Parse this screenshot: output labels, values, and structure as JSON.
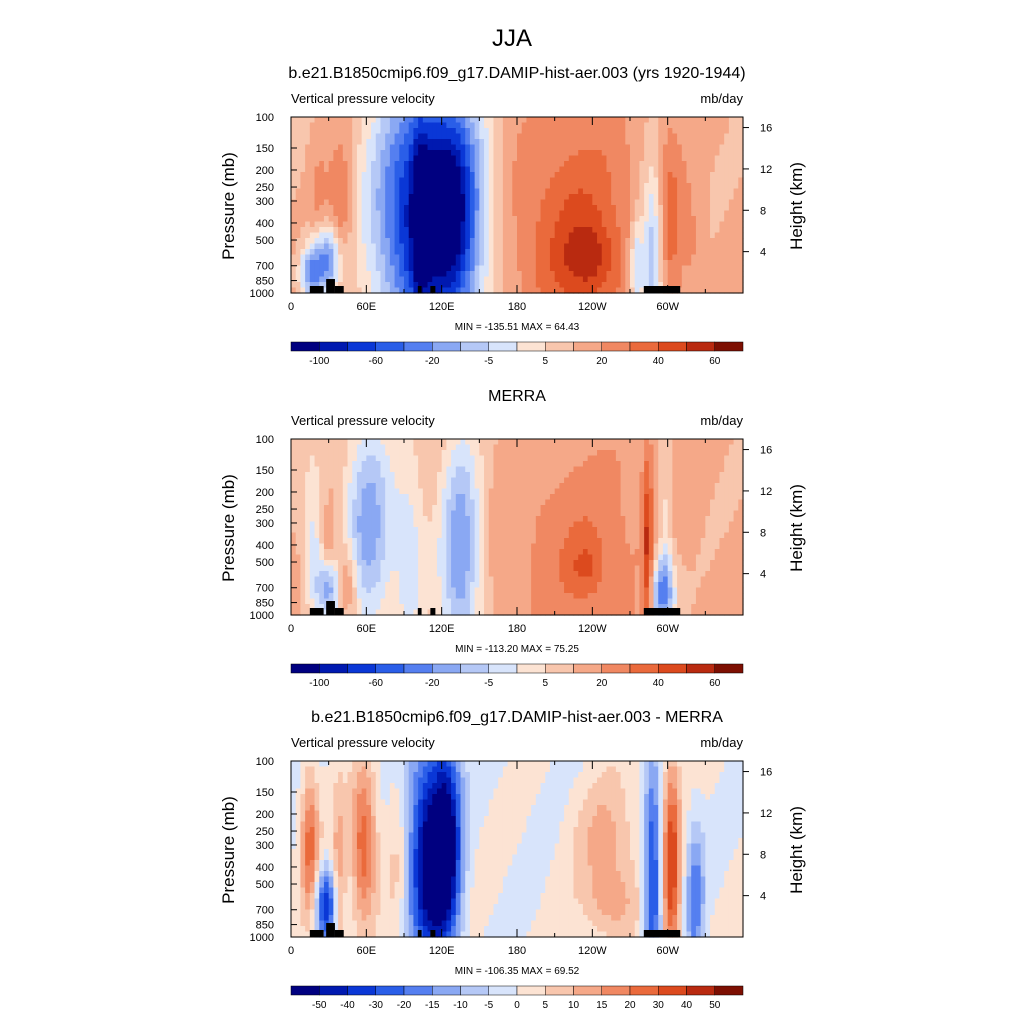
{
  "figure": {
    "title": "JJA"
  },
  "chart_data": [
    {
      "type": "heatmap",
      "title": "b.e21.B1850cmip6.f09_g17.DAMIP-hist-aer.003 (yrs 1920-1944)",
      "left_label": "Vertical pressure velocity",
      "right_label": "mb/day",
      "ylabel": "Pressure (mb)",
      "y2label": "Height (km)",
      "y_ticks": [
        "100",
        "150",
        "200",
        "250",
        "300",
        "400",
        "500",
        "700",
        "850",
        "1000"
      ],
      "y2_ticks": [
        "16",
        "12",
        "8",
        "4"
      ],
      "x_ticks": [
        "0",
        "60E",
        "120E",
        "180",
        "120W",
        "60W"
      ],
      "stats": "MIN = -135.51  MAX =  64.43",
      "colorbar_labels": [
        "-100",
        "-60",
        "-20",
        "-5",
        "5",
        "20",
        "40",
        "60"
      ],
      "colorbar_colors": [
        "#000080",
        "#0019b0",
        "#0a37d6",
        "#2a5ee8",
        "#557ff0",
        "#8aa8f3",
        "#b5c8f6",
        "#d8e4fb",
        "#fce3d3",
        "#f8c6ad",
        "#f5a888",
        "#f08862",
        "#ea6a3c",
        "#dc4a1e",
        "#b92a10",
        "#7d0f02"
      ],
      "clim": [
        -120,
        70
      ],
      "features": [
        {
          "lon": 28,
          "p": 650,
          "w": 9,
          "h": 0.14,
          "v": -70
        },
        {
          "lon": 15,
          "p": 780,
          "w": 6,
          "h": 0.1,
          "v": -50
        },
        {
          "lon": 40,
          "p": 380,
          "w": 7,
          "h": 0.32,
          "v": 30
        },
        {
          "lon": 22,
          "p": 350,
          "w": 5,
          "h": 0.3,
          "v": 15
        },
        {
          "lon": 100,
          "p": 350,
          "w": 26,
          "h": 0.55,
          "v": -95
        },
        {
          "lon": 130,
          "p": 350,
          "w": 18,
          "h": 0.5,
          "v": -80
        },
        {
          "lon": 103,
          "p": 380,
          "w": 4,
          "h": 0.35,
          "v": -40
        },
        {
          "lon": 226,
          "p": 450,
          "w": 36,
          "h": 0.5,
          "v": 35
        },
        {
          "lon": 238,
          "p": 650,
          "w": 15,
          "h": 0.15,
          "v": 25
        },
        {
          "lon": 288,
          "p": 600,
          "w": 6,
          "h": 0.35,
          "v": -55
        },
        {
          "lon": 275,
          "p": 700,
          "w": 4,
          "h": 0.2,
          "v": -45
        },
        {
          "lon": 302,
          "p": 400,
          "w": 7,
          "h": 0.4,
          "v": 25
        },
        {
          "lon": 320,
          "p": 550,
          "w": 6,
          "h": 0.3,
          "v": 12
        }
      ]
    },
    {
      "type": "heatmap",
      "title": "MERRA",
      "left_label": "Vertical pressure velocity",
      "right_label": "mb/day",
      "ylabel": "Pressure (mb)",
      "y2label": "Height (km)",
      "y_ticks": [
        "100",
        "150",
        "200",
        "250",
        "300",
        "400",
        "500",
        "700",
        "850",
        "1000"
      ],
      "y2_ticks": [
        "16",
        "12",
        "8",
        "4"
      ],
      "x_ticks": [
        "0",
        "60E",
        "120E",
        "180",
        "120W",
        "60W"
      ],
      "stats": "MIN = -113.20  MAX =  75.25",
      "colorbar_labels": [
        "-100",
        "-60",
        "-20",
        "-5",
        "5",
        "20",
        "40",
        "60"
      ],
      "colorbar_colors": [
        "#000080",
        "#0019b0",
        "#0a37d6",
        "#2a5ee8",
        "#557ff0",
        "#8aa8f3",
        "#b5c8f6",
        "#d8e4fb",
        "#fce3d3",
        "#f8c6ad",
        "#f5a888",
        "#f08862",
        "#ea6a3c",
        "#dc4a1e",
        "#b92a10",
        "#7d0f02"
      ],
      "clim": [
        -120,
        70
      ],
      "features": [
        {
          "lon": 62,
          "p": 320,
          "w": 14,
          "h": 0.45,
          "v": -55
        },
        {
          "lon": 18,
          "p": 400,
          "w": 6,
          "h": 0.35,
          "v": -30
        },
        {
          "lon": 30,
          "p": 700,
          "w": 6,
          "h": 0.12,
          "v": -60
        },
        {
          "lon": 45,
          "p": 650,
          "w": 6,
          "h": 0.15,
          "v": 30
        },
        {
          "lon": 30,
          "p": 500,
          "w": 4,
          "h": 0.2,
          "v": 20
        },
        {
          "lon": 95,
          "p": 450,
          "w": 9,
          "h": 0.45,
          "v": -30
        },
        {
          "lon": 135,
          "p": 450,
          "w": 12,
          "h": 0.5,
          "v": -60
        },
        {
          "lon": 230,
          "p": 420,
          "w": 42,
          "h": 0.45,
          "v": 20
        },
        {
          "lon": 235,
          "p": 550,
          "w": 10,
          "h": 0.12,
          "v": 18
        },
        {
          "lon": 284,
          "p": 550,
          "w": 3,
          "h": 0.5,
          "v": 45
        },
        {
          "lon": 295,
          "p": 750,
          "w": 8,
          "h": 0.15,
          "v": -60
        },
        {
          "lon": 298,
          "p": 400,
          "w": 4,
          "h": 0.35,
          "v": -25
        }
      ]
    },
    {
      "type": "heatmap",
      "title": "b.e21.B1850cmip6.f09_g17.DAMIP-hist-aer.003 - MERRA",
      "left_label": "Vertical pressure velocity",
      "right_label": "mb/day",
      "ylabel": "Pressure (mb)",
      "y2label": "Height (km)",
      "y_ticks": [
        "100",
        "150",
        "200",
        "250",
        "300",
        "400",
        "500",
        "700",
        "850",
        "1000"
      ],
      "y2_ticks": [
        "16",
        "12",
        "8",
        "4"
      ],
      "x_ticks": [
        "0",
        "60E",
        "120E",
        "180",
        "120W",
        "60W"
      ],
      "stats": "MIN = -106.35  MAX =  69.52",
      "colorbar_labels": [
        "-50",
        "-40",
        "-30",
        "-20",
        "-15",
        "-10",
        "-5",
        "0",
        "5",
        "10",
        "15",
        "20",
        "30",
        "40",
        "50"
      ],
      "colorbar_colors": [
        "#000080",
        "#0019b0",
        "#0a37d6",
        "#2a5ee8",
        "#557ff0",
        "#8aa8f3",
        "#b5c8f6",
        "#d8e4fb",
        "#fce3d3",
        "#f8c6ad",
        "#f5a888",
        "#f08862",
        "#ea6a3c",
        "#dc4a1e",
        "#b92a10",
        "#7d0f02"
      ],
      "clim": [
        -55,
        55
      ],
      "features": [
        {
          "lon": 15,
          "p": 300,
          "w": 5,
          "h": 0.3,
          "v": 30
        },
        {
          "lon": 58,
          "p": 300,
          "w": 7,
          "h": 0.3,
          "v": 35
        },
        {
          "lon": 28,
          "p": 650,
          "w": 6,
          "h": 0.15,
          "v": -40
        },
        {
          "lon": 38,
          "p": 500,
          "w": 4,
          "h": 0.35,
          "v": 20
        },
        {
          "lon": 110,
          "p": 350,
          "w": 12,
          "h": 0.45,
          "v": -55
        },
        {
          "lon": 125,
          "p": 300,
          "w": 8,
          "h": 0.45,
          "v": -40
        },
        {
          "lon": 85,
          "p": 350,
          "w": 6,
          "h": 0.4,
          "v": 10
        },
        {
          "lon": 255,
          "p": 650,
          "w": 15,
          "h": 0.15,
          "v": 15
        },
        {
          "lon": 252,
          "p": 280,
          "w": 18,
          "h": 0.25,
          "v": 15
        },
        {
          "lon": 288,
          "p": 500,
          "w": 5,
          "h": 0.45,
          "v": -40
        },
        {
          "lon": 303,
          "p": 420,
          "w": 5,
          "h": 0.45,
          "v": 40
        },
        {
          "lon": 322,
          "p": 600,
          "w": 5,
          "h": 0.3,
          "v": -25
        }
      ]
    }
  ]
}
